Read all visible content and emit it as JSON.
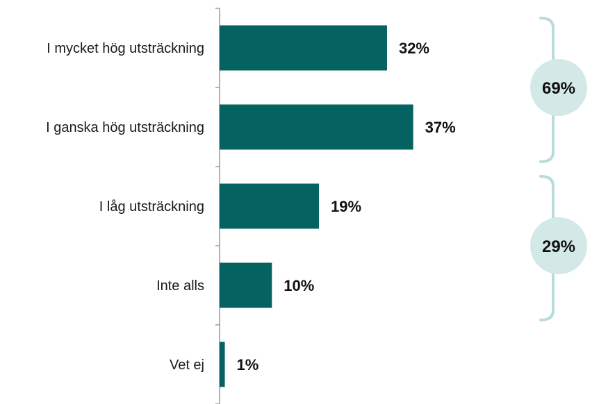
{
  "chart_data": {
    "type": "bar",
    "orientation": "horizontal",
    "categories": [
      "I mycket hög utsträckning",
      "I ganska hög utsträckning",
      "I låg utsträckning",
      "Inte alls",
      "Vet ej"
    ],
    "values": [
      32,
      37,
      19,
      10,
      1
    ],
    "value_labels": [
      "32%",
      "37%",
      "19%",
      "10%",
      "1%"
    ],
    "xlim": [
      0,
      100
    ],
    "grid": false,
    "legend": "none",
    "bar_color": "#046260",
    "groups": [
      {
        "label": "69%",
        "value": 69,
        "categories": [
          0,
          1
        ]
      },
      {
        "label": "29%",
        "value": 29,
        "categories": [
          2,
          3
        ]
      }
    ],
    "group_color": "#d3e9e7",
    "bracket_color": "#b9dcd8"
  }
}
